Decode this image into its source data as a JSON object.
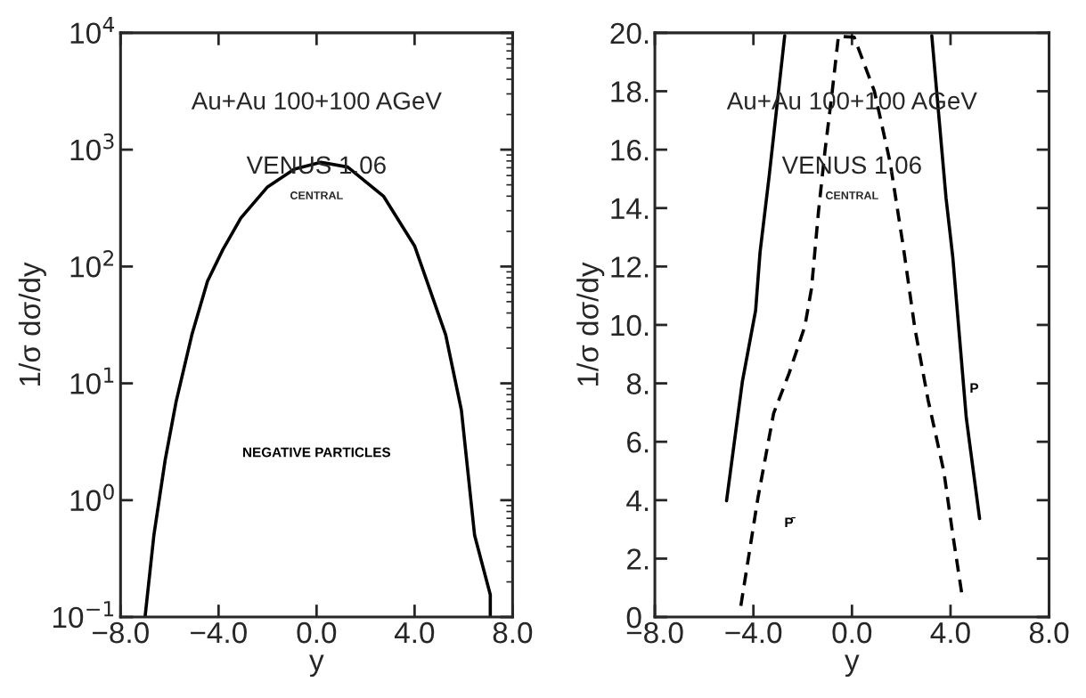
{
  "chart_data": [
    {
      "type": "line",
      "log": "y",
      "xlabel": "y",
      "ylabel": "1/σ dσ/dy",
      "xlim": [
        -8,
        8
      ],
      "ylim": [
        0.1,
        10000
      ],
      "xticks": [
        {
          "value": -8,
          "label": "−8.0"
        },
        {
          "value": -4,
          "label": "−4.0"
        },
        {
          "value": 0,
          "label": "0.0"
        },
        {
          "value": 4,
          "label": "4.0"
        },
        {
          "value": 8,
          "label": "8.0"
        }
      ],
      "yticks": [
        {
          "value": 0.1,
          "label": "10$^{−1}$"
        },
        {
          "value": 1,
          "label": "10$^{0}$"
        },
        {
          "value": 10,
          "label": "10$^{1}$"
        },
        {
          "value": 100,
          "label": "10$^{2}$"
        },
        {
          "value": 1000,
          "label": "10$^{3}$"
        },
        {
          "value": 10000,
          "label": "10$^{4}$"
        }
      ],
      "annotations": [
        "Au+Au 100+100 AGeV",
        "VENUS 1.06",
        "CENTRAL"
      ],
      "series": [
        {
          "name": "NEGATIVE PARTICLES",
          "color": "#000000",
          "line_style": "solid",
          "x": [
            -7.0,
            -6.64,
            -6.18,
            -5.73,
            -5.09,
            -4.45,
            -3.82,
            -3.09,
            -2.0,
            -0.91,
            0.18,
            1.27,
            2.73,
            4.0,
            5.27,
            5.91,
            6.45,
            7.09,
            7.09
          ],
          "values": [
            0.1,
            0.5,
            2.2,
            7,
            26,
            75,
            140,
            260,
            480,
            680,
            780,
            710,
            400,
            150,
            26,
            5.9,
            0.5,
            0.155,
            0.1
          ]
        }
      ]
    },
    {
      "type": "line",
      "xlabel": "y",
      "ylabel": "1/σ dσ/dy",
      "xlim": [
        -8,
        8
      ],
      "ylim": [
        0,
        20
      ],
      "xticks": [
        {
          "value": -8,
          "label": "−8.0"
        },
        {
          "value": -4,
          "label": "−4.0"
        },
        {
          "value": 0,
          "label": "0.0"
        },
        {
          "value": 4,
          "label": "4.0"
        },
        {
          "value": 8,
          "label": "8.0"
        }
      ],
      "yticks": [
        {
          "value": 0,
          "label": "0."
        },
        {
          "value": 2,
          "label": "2."
        },
        {
          "value": 4,
          "label": "4."
        },
        {
          "value": 6,
          "label": "6."
        },
        {
          "value": 8,
          "label": "8."
        },
        {
          "value": 10,
          "label": "10."
        },
        {
          "value": 12,
          "label": "12."
        },
        {
          "value": 14,
          "label": "14."
        },
        {
          "value": 16,
          "label": "16."
        },
        {
          "value": 18,
          "label": "18."
        },
        {
          "value": 20,
          "label": "20."
        }
      ],
      "annotations": [
        "Au+Au 100+100 AGeV",
        "VENUS 1.06",
        "CENTRAL"
      ],
      "series": [
        {
          "name": "P",
          "color": "#000000",
          "line_style": "solid",
          "x": [
            -5.09,
            -4.45,
            -3.91,
            -3.73,
            -3.36,
            -2.73,
            0,
            3.24,
            3.82,
            4.09,
            4.64,
            5.18
          ],
          "values": [
            3.98,
            8.05,
            10.5,
            12.49,
            15.1,
            19.9,
            null,
            19.9,
            14.33,
            12.34,
            6.82,
            3.37
          ]
        },
        {
          "name": "P̄",
          "color": "#000000",
          "line_style": "dashed",
          "x": [
            -4.51,
            -3.82,
            -3.18,
            -2.55,
            -1.91,
            -1.64,
            -1.36,
            -1.09,
            -0.82,
            -0.55,
            0.09,
            0.91,
            1.55,
            2.09,
            2.55,
            3.09,
            3.73,
            4.09,
            4.45
          ],
          "values": [
            0.38,
            4.06,
            6.97,
            8.35,
            9.96,
            11.26,
            13.87,
            16.0,
            17.85,
            19.88,
            19.85,
            18.0,
            15.56,
            12.64,
            9.9,
            7.43,
            4.98,
            2.84,
            0.84
          ]
        }
      ]
    }
  ]
}
